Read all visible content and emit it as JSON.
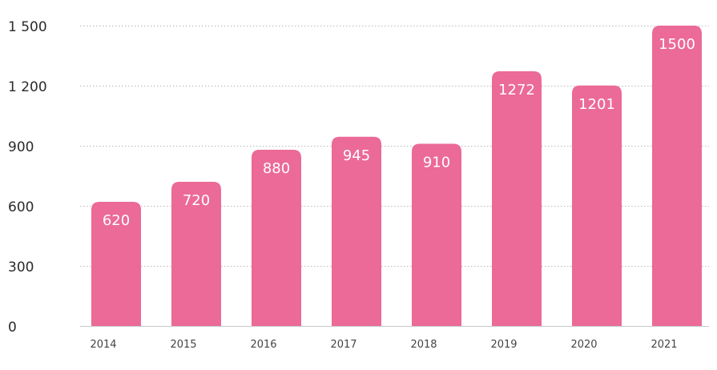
{
  "chart_data": {
    "type": "bar",
    "categories": [
      "2014",
      "2015",
      "2016",
      "2017",
      "2018",
      "2019",
      "2020",
      "2021"
    ],
    "values": [
      620,
      720,
      880,
      945,
      910,
      1272,
      1201,
      1500
    ],
    "data_labels": [
      "620",
      "720",
      "880",
      "945",
      "910",
      "1272",
      "1201",
      "1500"
    ],
    "ylim": [
      0,
      1500
    ],
    "yticks": [
      0,
      300,
      600,
      900,
      1200,
      1500
    ],
    "ytick_labels": [
      "0",
      "300",
      "600",
      "900",
      "1 200",
      "1 500"
    ],
    "grid": true,
    "bar_color": "#EB6A97",
    "title": "",
    "xlabel": "",
    "ylabel": ""
  }
}
